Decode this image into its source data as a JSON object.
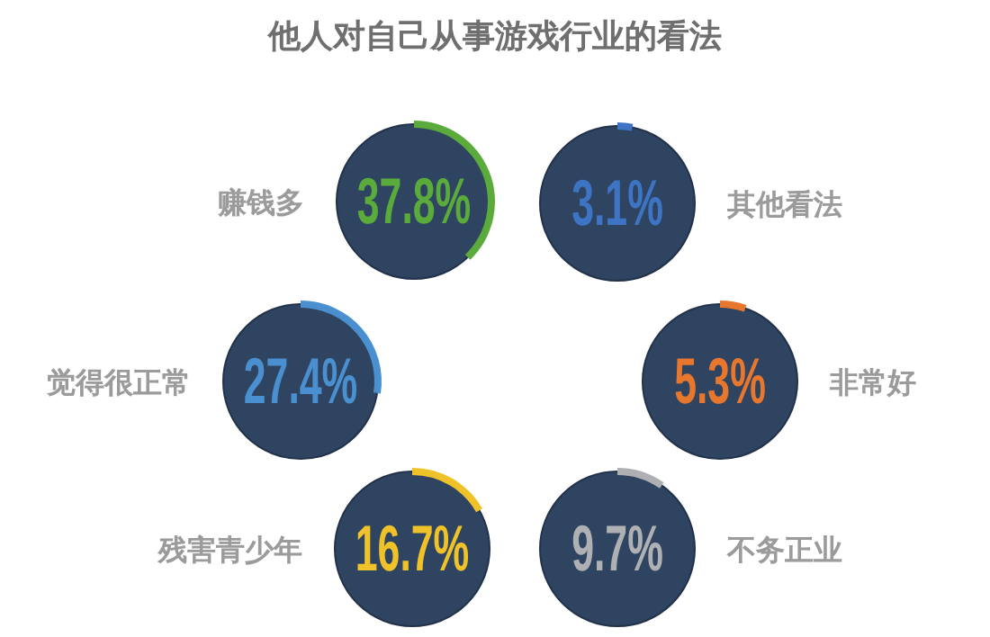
{
  "chart_data": {
    "type": "other",
    "title": "他人对自己从事游戏行业的看法",
    "categories": [
      "赚钱多",
      "其他看法",
      "觉得很正常",
      "非常好",
      "残害青少年",
      "不务正业"
    ],
    "values": [
      37.8,
      3.1,
      27.4,
      5.3,
      16.7,
      9.7
    ],
    "value_labels": [
      "37.8%",
      "3.1%",
      "27.4%",
      "5.3%",
      "16.7%",
      "9.7%"
    ]
  }
}
